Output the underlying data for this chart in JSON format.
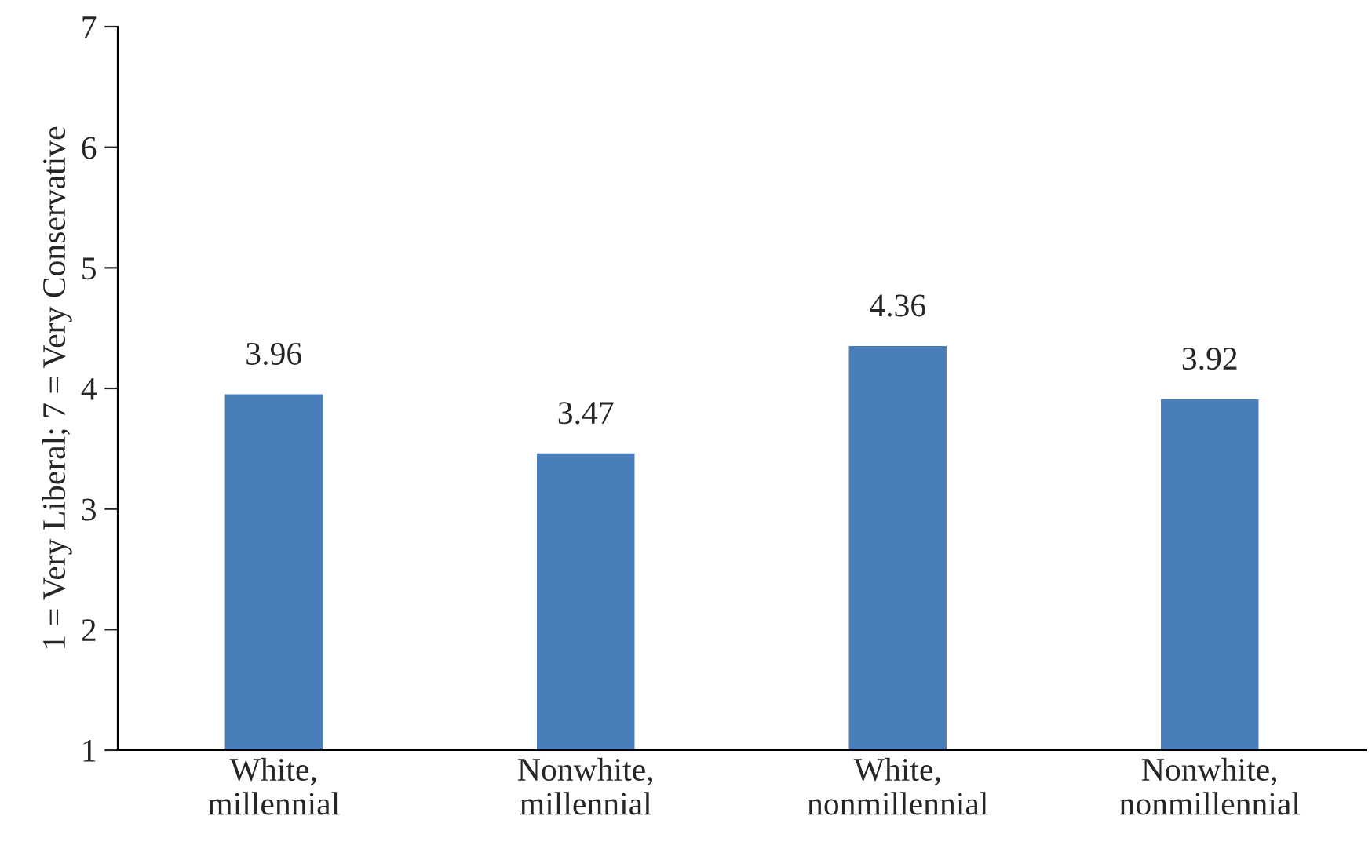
{
  "chart_data": {
    "type": "bar",
    "ylabel": "1 = Very Liberal; 7 = Very Conservative",
    "categories": [
      "White,\nmillennial",
      "Nonwhite,\nmillennial",
      "White,\nnonmillennial",
      "Nonwhite,\nnonmillennial"
    ],
    "values": [
      3.96,
      3.47,
      4.36,
      3.92
    ],
    "color": "#4a7ebb",
    "ylim": [
      1,
      7
    ],
    "yticks": [
      1,
      2,
      3,
      4,
      5,
      6,
      7
    ],
    "data_labels": true,
    "grid": false,
    "legend": false
  }
}
